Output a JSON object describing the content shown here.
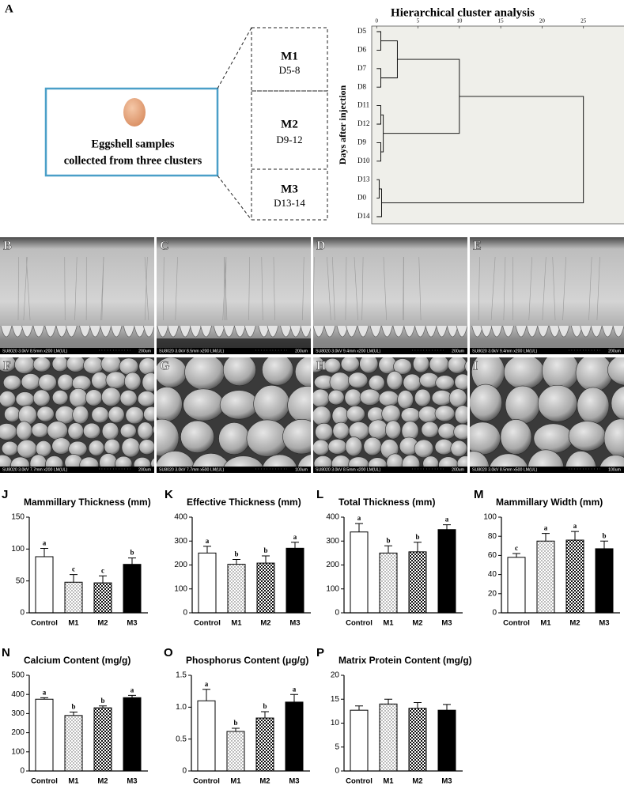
{
  "panel_a": {
    "label": "A",
    "sample_box": {
      "lines": [
        "Eggshell samples",
        "collected from three clusters"
      ],
      "color": "#4a9fc8",
      "egg_color": "#e8a67e"
    },
    "clusters": [
      {
        "name": "M1",
        "days": "D5-8"
      },
      {
        "name": "M2",
        "days": "D9-12"
      },
      {
        "name": "M3",
        "days": "D13-14"
      }
    ],
    "dendrogram": {
      "title": "Hierarchical cluster analysis",
      "ylabel": "Days after injection",
      "leaves": [
        "D5",
        "D6",
        "D7",
        "D8",
        "D11",
        "D12",
        "D9",
        "D10",
        "D13",
        "D0",
        "D14"
      ],
      "merges": [
        {
          "nodes": [
            0,
            1
          ],
          "height": 0.5
        },
        {
          "nodes": [
            2,
            3
          ],
          "height": 0.5
        },
        {
          "nodes": [
            4,
            5
          ],
          "height": 0.5
        },
        {
          "nodes": [
            6,
            7
          ],
          "height": 0.5
        },
        {
          "nodes": [
            8,
            9
          ],
          "height": 0.3
        },
        {
          "nodes": [
            15,
            10
          ],
          "height": 0.6
        },
        {
          "nodes": [
            11,
            12
          ],
          "height": 2.5
        },
        {
          "nodes": [
            13,
            14
          ],
          "height": 0.8
        },
        {
          "nodes": [
            17,
            18
          ],
          "height": 10
        },
        {
          "nodes": [
            19,
            16
          ],
          "height": 25
        }
      ],
      "xlim": [
        -0.6,
        30
      ],
      "xticks": [
        0,
        5,
        10,
        15,
        20,
        25
      ],
      "background": "#efefea",
      "color": "#000000"
    }
  },
  "images": [
    {
      "label": "B",
      "caption": "SU8020 3.0kV 8.5mm x200 LM(UL)",
      "scale": "200um"
    },
    {
      "label": "C",
      "caption": "SU8020 3.0kV 8.5mm x200 LM(UL)",
      "scale": "200um"
    },
    {
      "label": "D",
      "caption": "SU8020 3.0kV 9.4mm x200 LM(UL)",
      "scale": "200um"
    },
    {
      "label": "E",
      "caption": "SU8020 3.0kV 9.4mm x200 LM(UL)",
      "scale": "200um"
    },
    {
      "label": "F",
      "caption": "SU8020 3.0kV 7.7mm x200 LM(UL)",
      "scale": "200um"
    },
    {
      "label": "G",
      "caption": "SU8020 3.0kV 7.7mm x500 LM(UL)",
      "scale": "100um"
    },
    {
      "label": "H",
      "caption": "SU8020 3.0kV 8.5mm x200 LM(UL)",
      "scale": "200um"
    },
    {
      "label": "I",
      "caption": "SU8020 3.0kV 8.5mm x500 LM(UL)",
      "scale": "100um"
    }
  ],
  "chart_data": [
    {
      "type": "bar",
      "label": "J",
      "title": "Mammillary Thickness (mm)",
      "categories": [
        "Control",
        "M1",
        "M2",
        "M3"
      ],
      "values": [
        88,
        48,
        47,
        76
      ],
      "errors": [
        13,
        12,
        11,
        10
      ],
      "letters": [
        "a",
        "c",
        "c",
        "b"
      ],
      "ylim": [
        0,
        150
      ],
      "yticks": [
        0,
        50,
        100,
        150
      ],
      "styles": [
        "white",
        "dotted",
        "checkered",
        "black"
      ]
    },
    {
      "type": "bar",
      "label": "K",
      "title": "Effective Thickness (mm)",
      "categories": [
        "Control",
        "M1",
        "M2",
        "M3"
      ],
      "values": [
        250,
        203,
        208,
        270
      ],
      "errors": [
        28,
        20,
        30,
        25
      ],
      "letters": [
        "a",
        "b",
        "b",
        "a"
      ],
      "ylim": [
        0,
        400
      ],
      "yticks": [
        0,
        100,
        200,
        300,
        400
      ],
      "styles": [
        "white",
        "dotted",
        "checkered",
        "black"
      ]
    },
    {
      "type": "bar",
      "label": "L",
      "title": "Total Thickness (mm)",
      "categories": [
        "Control",
        "M1",
        "M2",
        "M3"
      ],
      "values": [
        338,
        250,
        255,
        348
      ],
      "errors": [
        35,
        30,
        40,
        20
      ],
      "letters": [
        "a",
        "b",
        "b",
        "a"
      ],
      "ylim": [
        0,
        400
      ],
      "yticks": [
        0,
        100,
        200,
        300,
        400
      ],
      "styles": [
        "white",
        "dotted",
        "checkered",
        "black"
      ]
    },
    {
      "type": "bar",
      "label": "M",
      "title": "Mammillary Width (mm)",
      "categories": [
        "Control",
        "M1",
        "M2",
        "M3"
      ],
      "values": [
        58,
        75,
        76,
        67
      ],
      "errors": [
        4,
        8,
        9,
        8
      ],
      "letters": [
        "c",
        "a",
        "a",
        "b"
      ],
      "ylim": [
        0,
        100
      ],
      "yticks": [
        0,
        20,
        40,
        60,
        80,
        100
      ],
      "styles": [
        "white",
        "dotted",
        "checkered",
        "black"
      ]
    },
    {
      "type": "bar",
      "label": "N",
      "title": "Calcium Content (mg/g)",
      "categories": [
        "Control",
        "M1",
        "M2",
        "M3"
      ],
      "values": [
        375,
        290,
        330,
        383
      ],
      "errors": [
        8,
        18,
        10,
        12
      ],
      "letters": [
        "a",
        "b",
        "b",
        "a"
      ],
      "ylim": [
        0,
        500
      ],
      "yticks": [
        0,
        100,
        200,
        300,
        400,
        500
      ],
      "styles": [
        "white",
        "dotted",
        "checkered",
        "black"
      ]
    },
    {
      "type": "bar",
      "label": "O",
      "title": "Phosphorus Content (μg/g)",
      "categories": [
        "Control",
        "M1",
        "M2",
        "M3"
      ],
      "values": [
        1.1,
        0.62,
        0.83,
        1.08
      ],
      "errors": [
        0.18,
        0.05,
        0.1,
        0.12
      ],
      "letters": [
        "a",
        "b",
        "b",
        "a"
      ],
      "ylim": [
        0,
        1.5
      ],
      "yticks": [
        0,
        0.5,
        {
          "value": 1,
          "label": "1.0"
        },
        1.5
      ],
      "styles": [
        "white",
        "dotted",
        "checkered",
        "black"
      ]
    },
    {
      "type": "bar",
      "label": "P",
      "title": "Matrix Protein Content (mg/g)",
      "categories": [
        "Control",
        "M1",
        "M2",
        "M3"
      ],
      "values": [
        12.7,
        14,
        13.1,
        12.7
      ],
      "errors": [
        0.9,
        1,
        1.2,
        1.2
      ],
      "ylim": [
        0,
        20
      ],
      "yticks": [
        0,
        5,
        10,
        15,
        20
      ],
      "styles": [
        "white",
        "dotted",
        "checkered",
        "black"
      ]
    }
  ]
}
